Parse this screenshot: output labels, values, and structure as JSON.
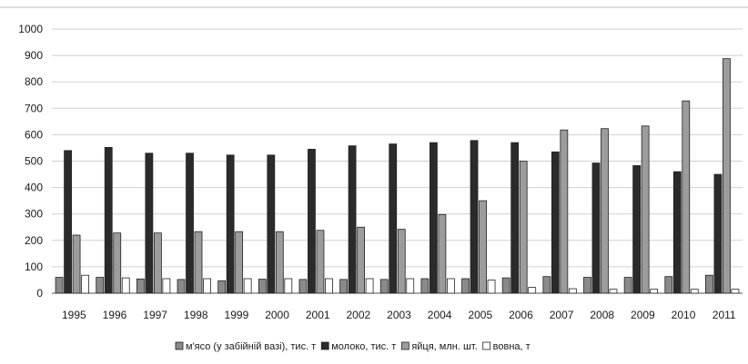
{
  "chart_data": {
    "type": "bar",
    "title": "",
    "xlabel": "",
    "ylabel": "",
    "ylim": [
      0,
      1000
    ],
    "yticks": [
      0,
      100,
      200,
      300,
      400,
      500,
      600,
      700,
      800,
      900,
      1000
    ],
    "grid": true,
    "legend_position": "bottom",
    "categories": [
      "1995",
      "1996",
      "1997",
      "1998",
      "1999",
      "2000",
      "2001",
      "2002",
      "2003",
      "2004",
      "2005",
      "2006",
      "2007",
      "2008",
      "2009",
      "2010",
      "2011"
    ],
    "series": [
      {
        "name": "м'ясо (у забійній вазі),  тис. т",
        "color": "#8a8a8a",
        "values": [
          60,
          60,
          54,
          52,
          47,
          53,
          52,
          52,
          52,
          55,
          55,
          58,
          63,
          60,
          60,
          63,
          68
        ]
      },
      {
        "name": "молоко, тис. т",
        "color": "#2b2b2b",
        "values": [
          540,
          552,
          530,
          530,
          523,
          523,
          545,
          558,
          565,
          570,
          578,
          570,
          535,
          493,
          483,
          460,
          450
        ]
      },
      {
        "name": "яйця,  млн. шт.",
        "color": "#9c9c9c",
        "values": [
          220,
          228,
          228,
          233,
          233,
          233,
          238,
          250,
          242,
          298,
          350,
          500,
          618,
          623,
          633,
          728,
          888
        ]
      },
      {
        "name": "вовна, т",
        "color": "#ffffff",
        "values": [
          68,
          58,
          55,
          55,
          55,
          55,
          55,
          55,
          55,
          55,
          50,
          22,
          17,
          15,
          15,
          15,
          15
        ]
      }
    ]
  }
}
